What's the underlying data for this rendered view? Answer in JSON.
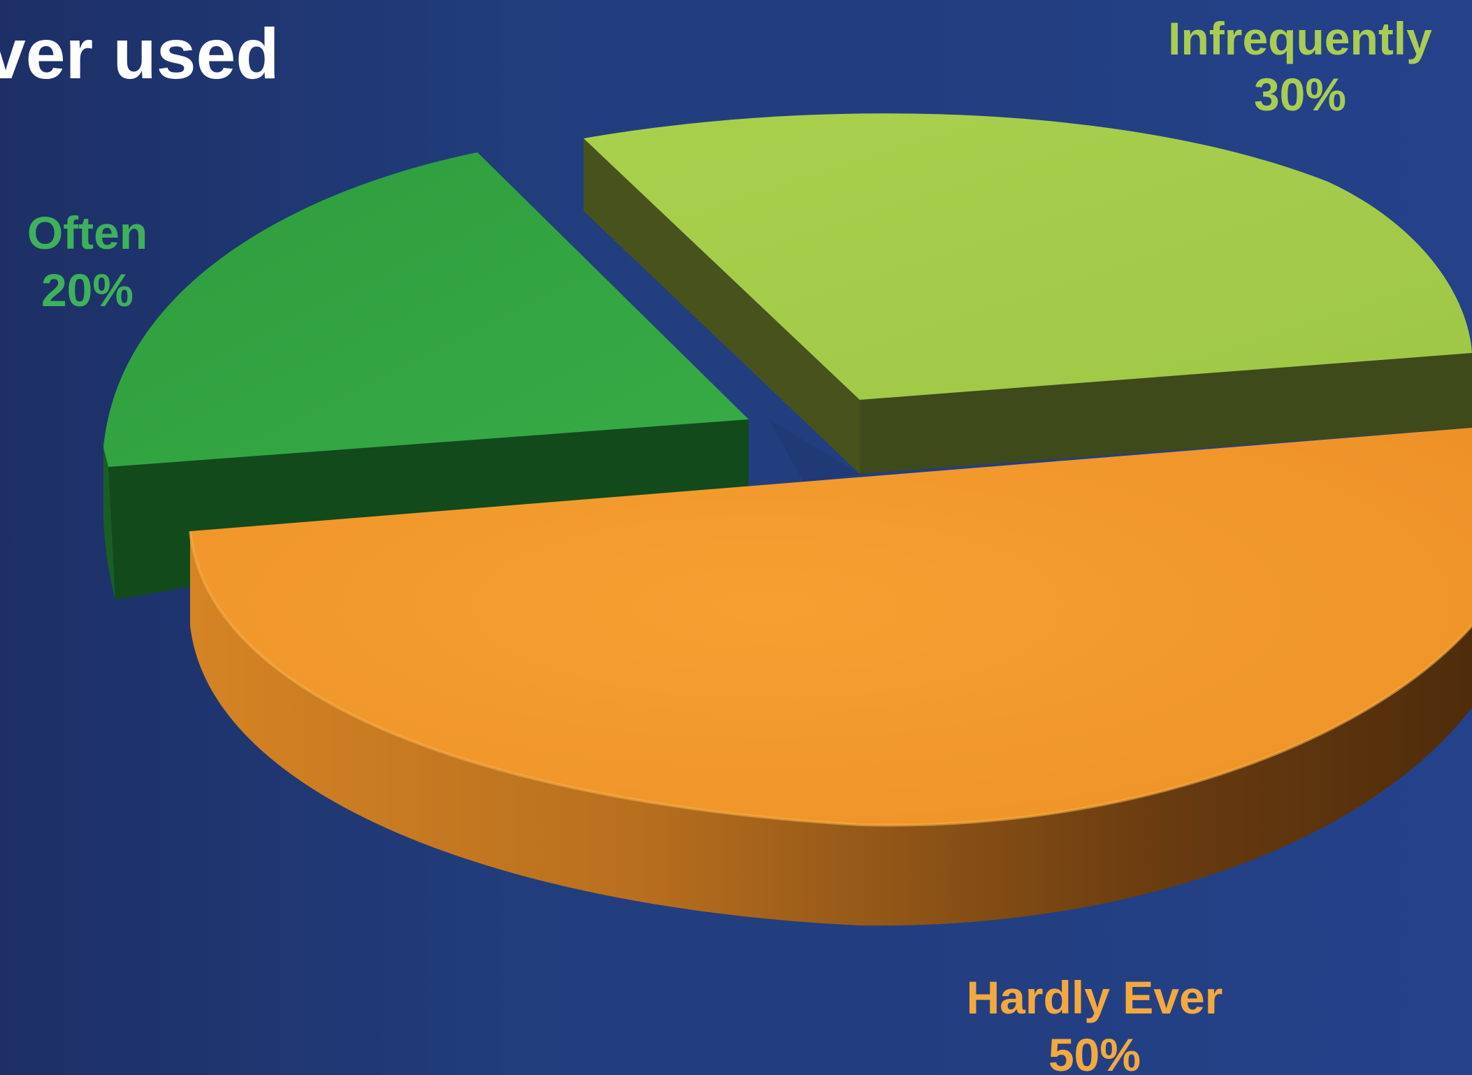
{
  "chart_data": {
    "type": "pie",
    "title": "ver used",
    "three_d": true,
    "exploded": true,
    "slices": [
      {
        "label": "Hardly Ever",
        "value": 50,
        "value_label": "50%",
        "color": "#f3972a",
        "side_color": "#a4621d",
        "label_color": "#f4a93f"
      },
      {
        "label": "Often",
        "value": 20,
        "value_label": "20%",
        "color": "#34a544",
        "side_color": "#124a1c",
        "label_color": "#3eb15a"
      },
      {
        "label": "Infrequently",
        "value": 30,
        "value_label": "30%",
        "color": "#a6cd4b",
        "side_color": "#44501c",
        "label_color": "#a8cd52"
      }
    ]
  },
  "background_color": "#213d7c"
}
